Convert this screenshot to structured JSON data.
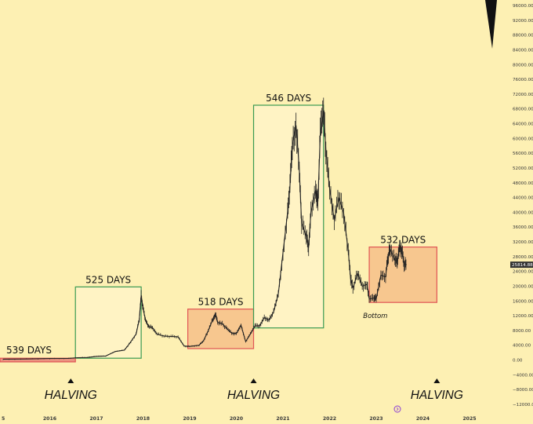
{
  "chart_data": {
    "type": "line",
    "x_axis": {
      "type": "year",
      "tick_labels": [
        "5",
        "2016",
        "2017",
        "2018",
        "2019",
        "2020",
        "2021",
        "2022",
        "2023",
        "2024",
        "2025"
      ],
      "range": [
        2015.0,
        2025.6
      ]
    },
    "y_axis": {
      "position": "right",
      "range": [
        -12000,
        96000
      ],
      "tick_labels": [
        "96000.00",
        "92000.00",
        "88000.00",
        "84000.00",
        "80000.00",
        "76000.00",
        "72000.00",
        "68000.00",
        "64000.00",
        "60000.00",
        "56000.00",
        "52000.00",
        "48000.00",
        "44000.00",
        "40000.00",
        "36000.00",
        "32000.00",
        "28000.00",
        "24000.00",
        "20000.00",
        "16000.00",
        "12000.00",
        "8000.00",
        "4000.00",
        "0.00",
        "−4000.00",
        "−8000.00",
        "−12000.00"
      ]
    },
    "current_price_label": "25814.88",
    "current_price": 25814.88,
    "series": [
      {
        "points": [
          [
            2015.0,
            250
          ],
          [
            2015.5,
            280
          ],
          [
            2016.0,
            420
          ],
          [
            2016.4,
            450
          ],
          [
            2016.6,
            650
          ],
          [
            2016.8,
            700
          ],
          [
            2017.0,
            1000
          ],
          [
            2017.2,
            1100
          ],
          [
            2017.4,
            2300
          ],
          [
            2017.6,
            2700
          ],
          [
            2017.7,
            4300
          ],
          [
            2017.85,
            7000
          ],
          [
            2017.92,
            11000
          ],
          [
            2017.96,
            17500
          ],
          [
            2018.0,
            14000
          ],
          [
            2018.05,
            11000
          ],
          [
            2018.12,
            9000
          ],
          [
            2018.2,
            8800
          ],
          [
            2018.3,
            7000
          ],
          [
            2018.45,
            6500
          ],
          [
            2018.6,
            6400
          ],
          [
            2018.75,
            6300
          ],
          [
            2018.88,
            3800
          ],
          [
            2019.0,
            3700
          ],
          [
            2019.2,
            4000
          ],
          [
            2019.3,
            5300
          ],
          [
            2019.4,
            8000
          ],
          [
            2019.5,
            11200
          ],
          [
            2019.55,
            12500
          ],
          [
            2019.6,
            10200
          ],
          [
            2019.7,
            9800
          ],
          [
            2019.8,
            8500
          ],
          [
            2019.9,
            7300
          ],
          [
            2020.0,
            7200
          ],
          [
            2020.1,
            9500
          ],
          [
            2020.2,
            5000
          ],
          [
            2020.3,
            7000
          ],
          [
            2020.4,
            9200
          ],
          [
            2020.5,
            9300
          ],
          [
            2020.6,
            11500
          ],
          [
            2020.7,
            10800
          ],
          [
            2020.8,
            13000
          ],
          [
            2020.9,
            18000
          ],
          [
            2021.0,
            29000
          ],
          [
            2021.1,
            40000
          ],
          [
            2021.15,
            47000
          ],
          [
            2021.2,
            58000
          ],
          [
            2021.28,
            63500
          ],
          [
            2021.35,
            52000
          ],
          [
            2021.4,
            37000
          ],
          [
            2021.5,
            33500
          ],
          [
            2021.55,
            30500
          ],
          [
            2021.6,
            40000
          ],
          [
            2021.7,
            46000
          ],
          [
            2021.75,
            43000
          ],
          [
            2021.8,
            61000
          ],
          [
            2021.87,
            67500
          ],
          [
            2021.92,
            57000
          ],
          [
            2022.0,
            46500
          ],
          [
            2022.1,
            38000
          ],
          [
            2022.2,
            44000
          ],
          [
            2022.3,
            40000
          ],
          [
            2022.4,
            29500
          ],
          [
            2022.45,
            22000
          ],
          [
            2022.5,
            19500
          ],
          [
            2022.6,
            23500
          ],
          [
            2022.7,
            20000
          ],
          [
            2022.8,
            20500
          ],
          [
            2022.85,
            16500
          ],
          [
            2022.95,
            16800
          ],
          [
            2023.0,
            16600
          ],
          [
            2023.1,
            23000
          ],
          [
            2023.2,
            22500
          ],
          [
            2023.25,
            28000
          ],
          [
            2023.3,
            30000
          ],
          [
            2023.4,
            27000
          ],
          [
            2023.45,
            26800
          ],
          [
            2023.5,
            30500
          ],
          [
            2023.55,
            29500
          ],
          [
            2023.6,
            26000
          ],
          [
            2023.65,
            25800
          ]
        ]
      }
    ],
    "annotations": [
      {
        "label": "539 DAYS",
        "border_color": "#e05555",
        "fill_color": "#e88a7a",
        "x_range": [
          2014.0,
          2016.55
        ],
        "y_range": [
          -500,
          500
        ]
      },
      {
        "label": "525 DAYS",
        "border_color": "#3a9a52",
        "fill_color": "#fff4c9",
        "x_range": [
          2016.55,
          2017.96
        ],
        "y_range": [
          500,
          19800
        ]
      },
      {
        "label": "518 DAYS",
        "border_color": "#e05555",
        "fill_color": "#f4b983",
        "x_range": [
          2018.96,
          2020.37
        ],
        "y_range": [
          3100,
          13800
        ]
      },
      {
        "label": "546 DAYS",
        "border_color": "#3a9a52",
        "fill_color": "#fff4c9",
        "x_range": [
          2020.37,
          2021.87
        ],
        "y_range": [
          8700,
          69000
        ]
      },
      {
        "label": "532 DAYS",
        "border_color": "#e05555",
        "fill_color": "#f4b983",
        "x_range": [
          2022.85,
          2024.3
        ],
        "y_range": [
          15600,
          30600
        ]
      }
    ],
    "halvings": [
      {
        "label": "HALVING",
        "x": 2016.45
      },
      {
        "label": "HALVING",
        "x": 2020.37
      },
      {
        "label": "HALVING",
        "x": 2024.3
      }
    ],
    "bottom_label": {
      "label": "Bottom",
      "x": 2022.88,
      "y": 15200
    },
    "colors": {
      "background": "#fdf0b3",
      "candles": "#222222",
      "price_tag": "#333333"
    }
  }
}
